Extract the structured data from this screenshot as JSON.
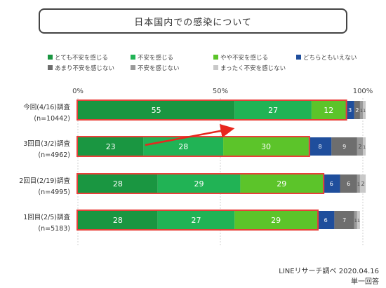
{
  "title": "日本国内での感染について",
  "source": "LINEリサーチ調べ 2020.04.16",
  "note": "単一回答",
  "colors": {
    "highlight": "#e8403a",
    "arrow": "#e8261e",
    "text_dark": "#333333"
  },
  "chart_data": {
    "type": "bar",
    "orientation": "horizontal",
    "stacked": true,
    "xlim": [
      0,
      100
    ],
    "x_ticks": [
      "0%",
      "50%",
      "100%"
    ],
    "grid": true,
    "legend_position": "top",
    "categories": [
      [
        "今回(4/16)調査",
        "(n=10442)"
      ],
      [
        "3回目(3/2)調査",
        "(n=4962)"
      ],
      [
        "2回目(2/19)調査",
        "(n=4995)"
      ],
      [
        "1回目(2/5)調査",
        "(n=5183)"
      ]
    ],
    "series": [
      {
        "name": "とても不安を感じる",
        "color": "#1a9641",
        "values": [
          55,
          23,
          28,
          28
        ]
      },
      {
        "name": "不安を感じる",
        "color": "#21b355",
        "values": [
          27,
          28,
          29,
          27
        ]
      },
      {
        "name": "やや不安を感じる",
        "color": "#5cc42a",
        "values": [
          12,
          30,
          29,
          29
        ]
      },
      {
        "name": "どちらともいえない",
        "color": "#1f4e9c",
        "values": [
          3,
          8,
          6,
          6
        ]
      },
      {
        "name": "あまり不安を感じない",
        "color": "#6e6e6e",
        "values": [
          2,
          9,
          6,
          7
        ]
      },
      {
        "name": "不安を感じない",
        "color": "#9a9a9a",
        "values": [
          1,
          2,
          1,
          1
        ]
      },
      {
        "name": "まったく不安を感じない",
        "color": "#c8c8c8",
        "values": [
          1,
          1,
          2,
          1
        ]
      }
    ],
    "highlighted_totals": [
      94,
      81,
      86,
      84
    ],
    "annotation": "arrow from 3回目(3/2)調査 bar to 今回(4/16)調査 bar"
  }
}
